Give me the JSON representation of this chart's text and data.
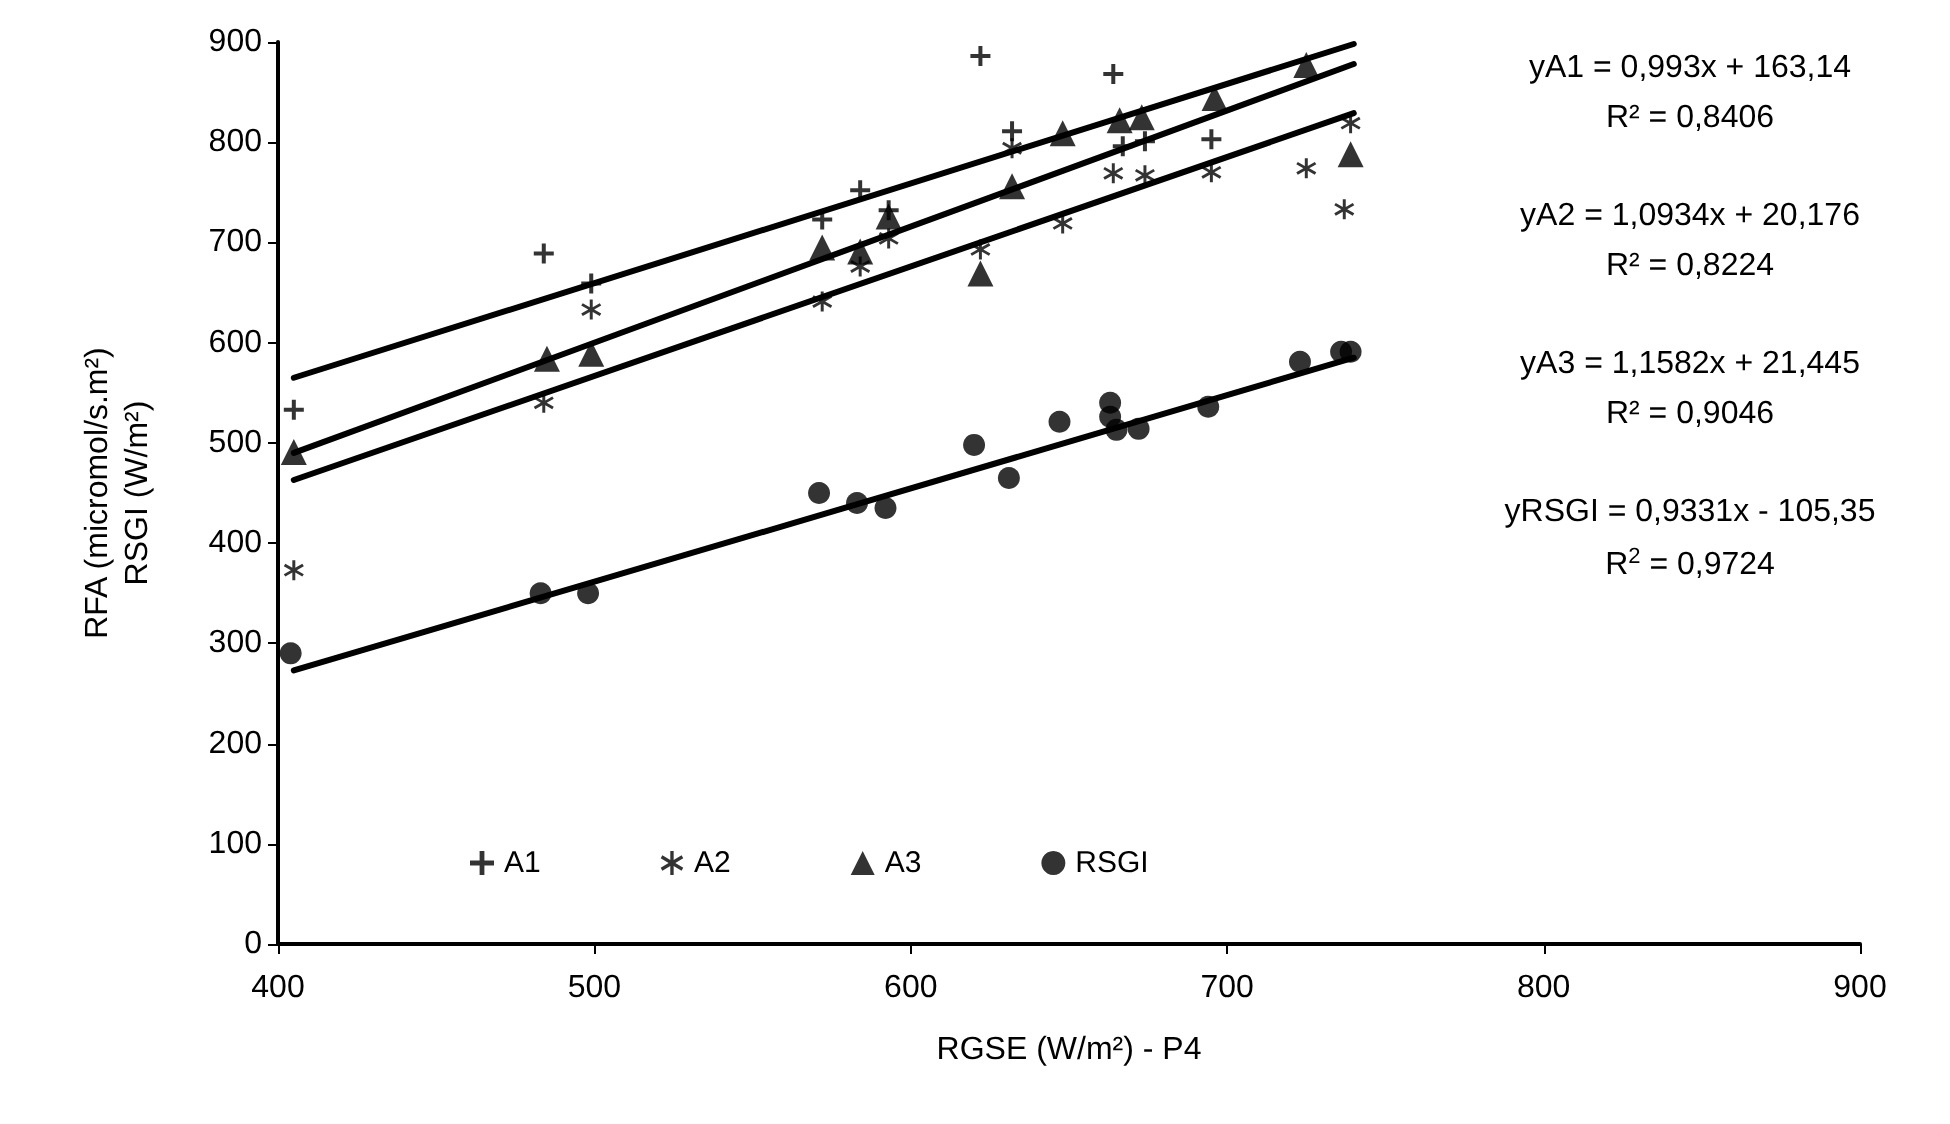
{
  "chart_data": {
    "type": "scatter",
    "xlabel": "RGSE (W/m²) - P4",
    "ylabel": "RFA (micromol/s.m²)\nRSGI (W/m²)",
    "xlim": [
      400,
      900
    ],
    "xticks": [
      400,
      500,
      600,
      700,
      800,
      900
    ],
    "ylim": [
      0,
      900
    ],
    "yticks": [
      0,
      100,
      200,
      300,
      400,
      500,
      600,
      700,
      800,
      900
    ],
    "grid": false,
    "legend": "bottom",
    "series": [
      {
        "name": "A1",
        "color": "#000000",
        "marker": "cross",
        "x": [
          405,
          484,
          499,
          572,
          584,
          593,
          622,
          632,
          664,
          667,
          674,
          695
        ],
        "values": [
          533,
          689,
          659,
          723,
          752,
          732,
          886,
          811,
          868,
          796,
          801,
          803
        ]
      },
      {
        "name": "A2",
        "color": "#000000",
        "marker": "star",
        "x": [
          405,
          484,
          499,
          572,
          584,
          593,
          622,
          632,
          648,
          664,
          674,
          695,
          725,
          737,
          739
        ],
        "values": [
          373,
          540,
          633,
          641,
          676,
          704,
          693,
          794,
          719,
          769,
          767,
          770,
          774,
          733,
          819
        ]
      },
      {
        "name": "A3",
        "color": "#000000",
        "marker": "triangle",
        "x": [
          405,
          485,
          499,
          572,
          584,
          593,
          622,
          632,
          648,
          666,
          673,
          696,
          725,
          739
        ],
        "values": [
          491,
          584,
          589,
          695,
          691,
          726,
          669,
          756,
          809,
          822,
          825,
          844,
          877,
          788
        ]
      },
      {
        "name": "RSGI",
        "color": "#000000",
        "marker": "circle",
        "x": [
          404,
          483,
          498,
          571,
          583,
          592,
          620,
          631,
          647,
          663,
          663,
          665,
          672,
          694,
          723,
          736,
          739
        ],
        "values": [
          290,
          350,
          350,
          450,
          440,
          435,
          498,
          465,
          521,
          540,
          526,
          513,
          514,
          536,
          581,
          591,
          591
        ]
      },
      {
        "type": "line",
        "color": "#000000",
        "marker": "none",
        "x": [
          405,
          740
        ],
        "values": [
          565,
          898
        ]
      },
      {
        "type": "line",
        "color": "#000000",
        "marker": "none",
        "x": [
          405,
          740
        ],
        "values": [
          463,
          829
        ]
      },
      {
        "type": "line",
        "color": "#000000",
        "marker": "none",
        "x": [
          405,
          740
        ],
        "values": [
          490,
          878
        ]
      },
      {
        "type": "line",
        "color": "#000000",
        "marker": "none",
        "x": [
          405,
          740
        ],
        "values": [
          273,
          585
        ]
      }
    ],
    "annotations": [
      "yA1 = 0,993x + 163,14",
      "R² = 0,8406",
      "yA2 = 1,0934x + 20,176",
      "R² = 0,8224",
      "yA3 = 1,1582x + 21,445",
      "R² = 0,9046",
      "yRSGI = 0,9331x - 105,35",
      "R$^{2}$ = 0,9724"
    ]
  }
}
